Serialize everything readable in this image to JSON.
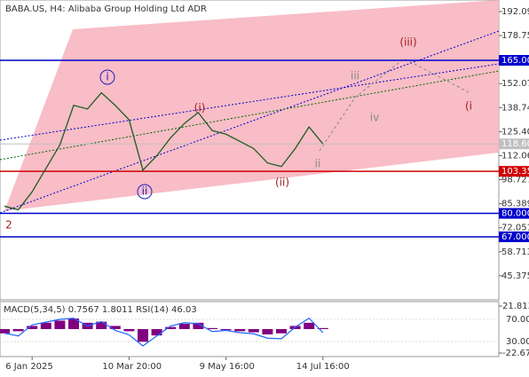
{
  "chart_data": [
    {
      "type": "line",
      "title": "BABA.US, H4:  Alibaba Group Holding Ltd ADR",
      "categories": [
        null,
        null,
        "6 Jan 2025",
        null,
        null,
        null,
        null,
        null,
        null,
        "10 Mar 20:00",
        null,
        null,
        null,
        null,
        null,
        null,
        "9 May 16:00",
        null,
        null,
        null,
        null,
        null,
        null,
        "14 Jul 16:00"
      ],
      "series": [
        {
          "color": "#1b5e20",
          "values": [
            84,
            82,
            92,
            105,
            118,
            140,
            138,
            147,
            140,
            132,
            104,
            112,
            122,
            130,
            136,
            126,
            124,
            120,
            116,
            108,
            106,
            116,
            128,
            118.6
          ]
        }
      ],
      "ylim": [
        32.0,
        198.5
      ],
      "yticks": [
        192.093,
        178.755,
        152.079,
        138.741,
        125.403,
        112.065,
        98.727,
        85.389,
        72.051,
        58.713,
        45.375
      ],
      "levels": [
        {
          "value": 165,
          "label": "165.000",
          "color": "#0000cc"
        },
        {
          "value": 118.6,
          "label": "118.600",
          "color": "#c0c0c0"
        },
        {
          "value": 103.35,
          "label": "103.350",
          "color": "#d00000"
        },
        {
          "value": 80,
          "label": "80.000",
          "color": "#0000cc"
        },
        {
          "value": 67,
          "label": "67.000",
          "color": "#0000cc"
        }
      ],
      "annotations": [
        "i",
        "ii",
        "(i)",
        "(ii)",
        "(iii)",
        "iii",
        "iv",
        "ii",
        "2",
        "(i"
      ]
    },
    {
      "type": "bar",
      "title": "MACD(5,34,5) 0.7567 1.8011 RSI(14) 46.03",
      "series": [
        {
          "color": "#800080",
          "values": [
            -4,
            -2,
            3,
            6,
            8,
            10,
            6,
            7,
            3,
            -2,
            -12,
            -6,
            2,
            5,
            6,
            1,
            -1,
            -2,
            -3,
            -5,
            -4,
            3,
            6,
            1
          ]
        },
        {
          "color": "#1e64ff",
          "axis": "y2",
          "values": [
            45,
            40,
            60,
            65,
            70,
            72,
            58,
            66,
            50,
            42,
            22,
            40,
            58,
            64,
            62,
            48,
            50,
            46,
            44,
            36,
            35,
            56,
            72,
            46
          ]
        }
      ],
      "ylim": [
        -26.0,
        26.0
      ],
      "yticks": [
        21.8131,
        -22.6703
      ],
      "y2lim": [
        2.8,
        102
      ],
      "y2ticks": [
        {
          "value": 70,
          "label": "70.00"
        },
        {
          "value": 30,
          "label": "30.00"
        }
      ]
    }
  ]
}
